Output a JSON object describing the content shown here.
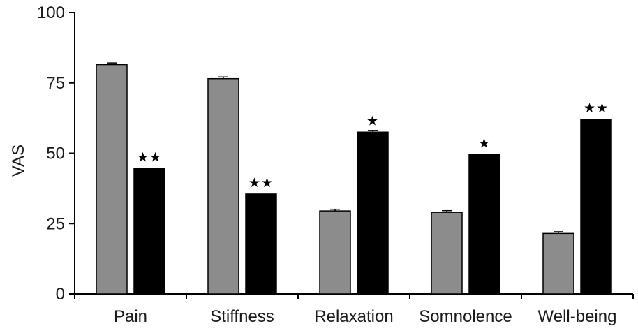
{
  "chart_data": {
    "type": "bar",
    "title": "",
    "xlabel": "",
    "ylabel": "VAS",
    "ylim": [
      0,
      100
    ],
    "yticks": [
      "0",
      "25",
      "50",
      "75",
      "100"
    ],
    "grid": false,
    "legend": "none",
    "categories": [
      "Pain",
      "Stiffness",
      "Relaxation",
      "Somnolence",
      "Well-being"
    ],
    "series": [
      {
        "color": "#8c8c8c",
        "values": [
          81.5,
          76.5,
          29.5,
          29,
          21.5
        ],
        "errors": [
          0.6,
          0.6,
          0.6,
          0.6,
          0.6
        ],
        "significance": [
          "",
          "",
          "",
          "",
          ""
        ]
      },
      {
        "color": "#000000",
        "values": [
          44.5,
          35.5,
          57.5,
          49.5,
          62
        ],
        "errors": [
          0,
          0,
          0.6,
          0,
          0
        ],
        "significance": [
          "★★",
          "★★",
          "★",
          "★",
          "★★"
        ]
      }
    ]
  }
}
